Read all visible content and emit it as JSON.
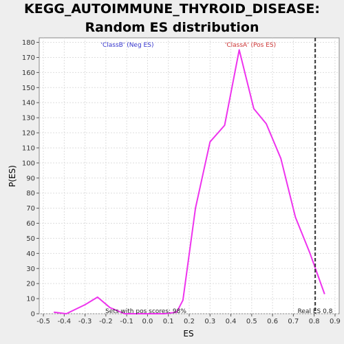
{
  "chart_data": {
    "type": "line",
    "title": "KEGG_AUTOIMMUNE_THYROID_DISEASE: Random ES distribution",
    "xlabel": "ES",
    "ylabel": "P(ES)",
    "xlim": [
      -0.52,
      0.92
    ],
    "ylim": [
      0,
      183
    ],
    "xticks": [
      "-0.5",
      "-0.4",
      "-0.3",
      "-0.2",
      "-0.1",
      "0.0",
      "0.1",
      "0.2",
      "0.3",
      "0.4",
      "0.5",
      "0.6",
      "0.7",
      "0.8",
      "0.9"
    ],
    "yticks": [
      "0",
      "10",
      "20",
      "30",
      "40",
      "50",
      "60",
      "70",
      "80",
      "90",
      "100",
      "110",
      "120",
      "130",
      "140",
      "150",
      "160",
      "170",
      "180"
    ],
    "grid": true,
    "series": [
      {
        "color": "#ee33ee",
        "x": [
          -0.45,
          -0.39,
          -0.3,
          -0.24,
          -0.18,
          -0.11,
          -0.05,
          0.02,
          0.08,
          0.14,
          0.17,
          0.23,
          0.3,
          0.37,
          0.44,
          0.51,
          0.57,
          0.64,
          0.71,
          0.78,
          0.85
        ],
        "y": [
          1,
          0,
          6,
          11,
          4,
          0,
          0,
          0,
          0,
          1,
          9,
          70,
          114,
          125,
          175,
          136,
          126,
          103,
          64,
          40,
          13
        ]
      }
    ],
    "real_es": {
      "value": 0.805,
      "label": "Real ES 0.8"
    },
    "annotations": {
      "neg": {
        "text": "'ClassB' (Neg ES)",
        "color": "#3333cc"
      },
      "pos": {
        "text": "'ClassA' (Pos ES)",
        "color": "#cc3333"
      },
      "sets": {
        "text": "Sets with pos scores: 98%"
      }
    }
  }
}
